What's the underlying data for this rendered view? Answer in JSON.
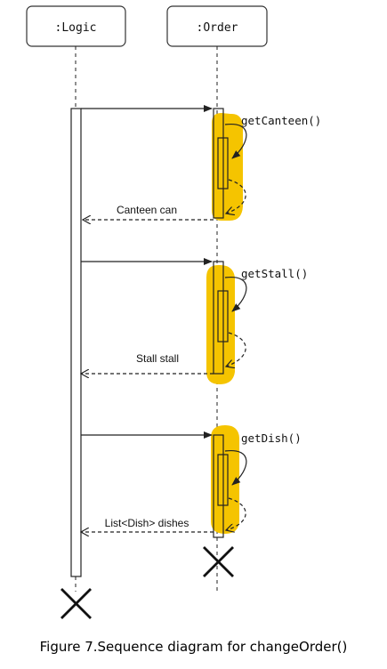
{
  "lifelines": {
    "logic": {
      "label": ":Logic"
    },
    "order": {
      "label": ":Order"
    }
  },
  "calls": [
    {
      "name": "getCanteen()",
      "return_label": "Canteen can"
    },
    {
      "name": "getStall()",
      "return_label": "Stall stall"
    },
    {
      "name": "getDish()",
      "return_label": "List<Dish> dishes"
    }
  ],
  "caption": "Figure 7.Sequence diagram for changeOrder()",
  "colors": {
    "highlight": "#F5C400",
    "line": "#222222",
    "box_border": "#333333"
  }
}
